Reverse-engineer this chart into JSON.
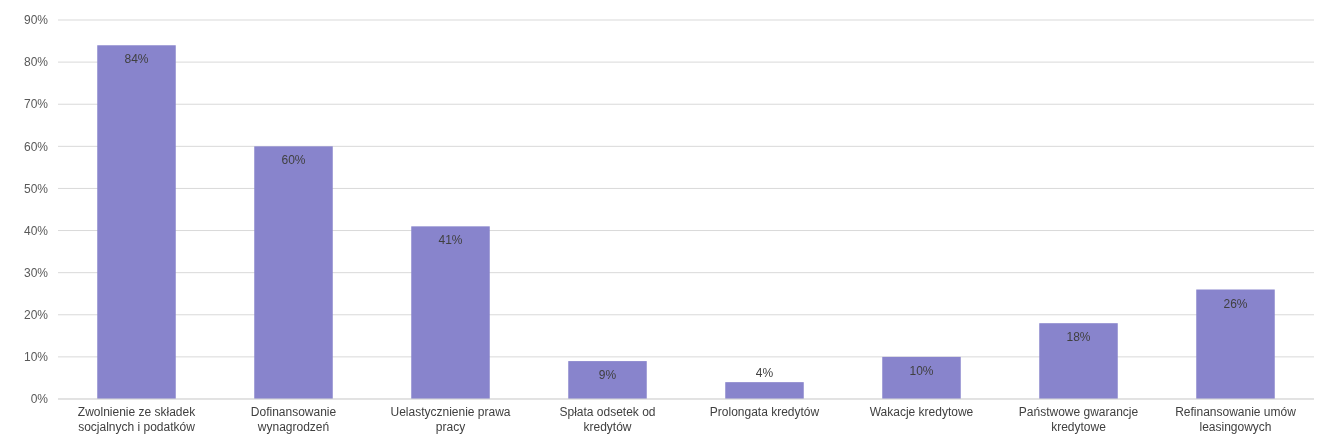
{
  "chart_data": {
    "type": "bar",
    "categories": [
      "Zwolnienie ze składek socjalnych i podatków",
      "Dofinansowanie wynagrodzeń",
      "Uelastycznienie prawa pracy",
      "Spłata odsetek od kredytów",
      "Prolongata kredytów",
      "Wakacje kredytowe",
      "Państwowe gwarancje kredytowe",
      "Refinansowanie umów leasingowych"
    ],
    "values": [
      84,
      60,
      41,
      9,
      4,
      10,
      18,
      26
    ],
    "value_labels": [
      "84%",
      "60%",
      "41%",
      "9%",
      "4%",
      "10%",
      "18%",
      "26%"
    ],
    "color": "#8884cc",
    "ylim": [
      0,
      90
    ],
    "yticks": [
      {
        "value": 0,
        "label": "0%"
      },
      {
        "value": 10,
        "label": "10%"
      },
      {
        "value": 20,
        "label": "20%"
      },
      {
        "value": 30,
        "label": "30%"
      },
      {
        "value": 40,
        "label": "40%"
      },
      {
        "value": 50,
        "label": "50%"
      },
      {
        "value": 60,
        "label": "60%"
      },
      {
        "value": 70,
        "label": "70%"
      },
      {
        "value": 80,
        "label": "80%"
      },
      {
        "value": 90,
        "label": "90%"
      }
    ],
    "grid": true
  }
}
